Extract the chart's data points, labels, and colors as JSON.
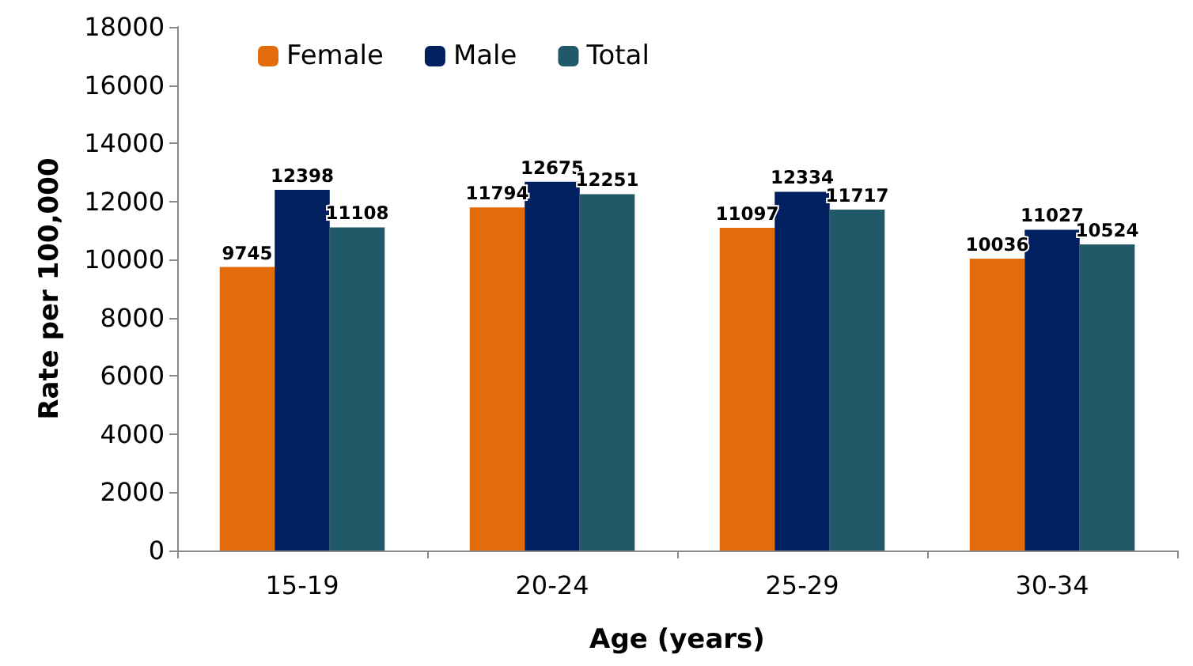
{
  "chart_data": {
    "type": "bar",
    "xlabel": "Age (years)",
    "ylabel": "Rate per 100,000",
    "categories": [
      "15-19",
      "20-24",
      "25-29",
      "30-34"
    ],
    "series": [
      {
        "name": "Female",
        "color": "#e36c0a",
        "values": [
          9745,
          11794,
          11097,
          10036
        ]
      },
      {
        "name": "Male",
        "color": "#002060",
        "values": [
          12398,
          12675,
          12334,
          11027
        ]
      },
      {
        "name": "Total",
        "color": "#215968",
        "values": [
          11108,
          12251,
          11717,
          10524
        ]
      }
    ],
    "ylim": [
      0,
      18000
    ],
    "yticks": [
      0,
      2000,
      4000,
      6000,
      8000,
      10000,
      12000,
      14000,
      16000,
      18000
    ],
    "grid": false,
    "legend": "top left",
    "data_labels": true
  }
}
